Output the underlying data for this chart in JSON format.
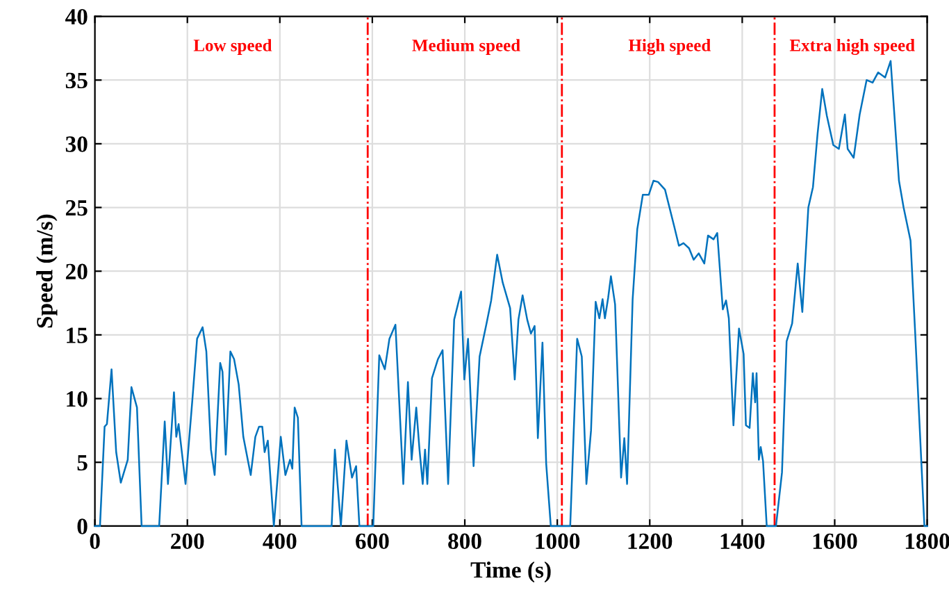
{
  "chart_data": {
    "type": "line",
    "xlabel": "Time (s)",
    "ylabel": "Speed (m/s)",
    "xlim": [
      0,
      1800
    ],
    "xticks": [
      0,
      200,
      400,
      600,
      800,
      1000,
      1200,
      1400,
      1600,
      1800
    ],
    "ylim": [
      0,
      40
    ],
    "yticks": [
      0,
      5,
      10,
      15,
      20,
      25,
      30,
      35,
      40
    ],
    "grid": true,
    "line_style": "solid",
    "marker": "none",
    "series": [
      {
        "color": "#0072bd",
        "x": [
          0,
          11,
          21,
          26,
          36,
          46,
          56,
          71,
          79,
          91,
          101,
          139,
          151,
          158,
          171,
          176,
          181,
          196,
          211,
          221,
          233,
          241,
          251,
          259,
          271,
          276,
          283,
          293,
          301,
          311,
          321,
          337,
          347,
          355,
          362,
          367,
          374,
          387,
          402,
          412,
          422,
          427,
          432,
          439,
          447,
          512,
          519,
          532,
          544,
          556,
          565,
          572,
          602,
          615,
          627,
          637,
          650,
          667,
          677,
          685,
          695,
          702,
          709,
          714,
          719,
          729,
          742,
          752,
          764,
          777,
          792,
          799,
          807,
          819,
          832,
          847,
          857,
          870,
          882,
          898,
          908,
          916,
          925,
          935,
          943,
          951,
          958,
          968,
          976,
          986,
          1028,
          1043,
          1053,
          1063,
          1073,
          1083,
          1091,
          1098,
          1103,
          1110,
          1116,
          1125,
          1138,
          1145,
          1151,
          1163,
          1173,
          1185,
          1198,
          1208,
          1218,
          1233,
          1253,
          1263,
          1273,
          1285,
          1295,
          1306,
          1318,
          1326,
          1338,
          1346,
          1358,
          1365,
          1371,
          1381,
          1393,
          1403,
          1408,
          1416,
          1423,
          1428,
          1431,
          1436,
          1440,
          1445,
          1453,
          1473,
          1486,
          1496,
          1508,
          1520,
          1530,
          1543,
          1553,
          1563,
          1573,
          1583,
          1597,
          1609,
          1622,
          1628,
          1641,
          1654,
          1669,
          1682,
          1694,
          1709,
          1721,
          1739,
          1749,
          1764,
          1774,
          1794,
          1800
        ],
        "values": [
          0,
          0,
          7.8,
          8.0,
          12.3,
          5.8,
          3.4,
          5.2,
          10.9,
          9.3,
          0,
          0,
          8.2,
          3.3,
          10.5,
          7.0,
          8.0,
          3.3,
          10.0,
          14.7,
          15.6,
          13.7,
          6.0,
          4.0,
          12.8,
          12.1,
          5.6,
          13.7,
          13.1,
          11.1,
          7.0,
          4.0,
          7.0,
          7.8,
          7.8,
          5.8,
          6.7,
          0,
          7.0,
          4.0,
          5.2,
          4.5,
          9.3,
          8.5,
          0,
          0,
          6.0,
          0,
          6.7,
          3.8,
          4.7,
          0,
          0,
          13.4,
          12.3,
          14.7,
          15.8,
          3.3,
          11.3,
          5.2,
          9.3,
          6.0,
          3.3,
          6.0,
          3.3,
          11.6,
          13.1,
          13.8,
          3.3,
          16.2,
          18.4,
          11.5,
          14.7,
          4.7,
          13.3,
          15.9,
          17.7,
          21.3,
          19.1,
          17.1,
          11.5,
          16.2,
          18.1,
          16.2,
          15.1,
          15.7,
          6.9,
          14.4,
          4.9,
          0,
          0,
          14.7,
          13.3,
          3.3,
          7.5,
          17.6,
          16.3,
          17.8,
          16.3,
          17.9,
          19.6,
          17.4,
          3.8,
          6.9,
          3.3,
          17.8,
          23.3,
          26.0,
          26.0,
          27.1,
          27.0,
          26.4,
          23.5,
          22.0,
          22.2,
          21.8,
          20.9,
          21.4,
          20.6,
          22.8,
          22.5,
          23.0,
          17.0,
          17.7,
          16.3,
          7.9,
          15.5,
          13.5,
          7.9,
          7.7,
          12.0,
          9.7,
          12.0,
          5.2,
          6.2,
          5.1,
          0,
          0,
          4.2,
          14.5,
          15.9,
          20.6,
          16.8,
          25.0,
          26.6,
          30.8,
          34.3,
          32.2,
          29.9,
          29.6,
          32.3,
          29.6,
          28.9,
          32.3,
          35.0,
          34.8,
          35.6,
          35.2,
          36.5,
          27.1,
          25.0,
          22.4,
          15.2,
          0,
          0
        ]
      }
    ],
    "ref_lines": [
      {
        "axis": "x",
        "value": 590,
        "color": "#ff0000",
        "line_style": "dashdot"
      },
      {
        "axis": "x",
        "value": 1010,
        "color": "#ff0000",
        "line_style": "dashdot"
      },
      {
        "axis": "x",
        "value": 1470,
        "color": "#ff0000",
        "line_style": "dashdot"
      }
    ],
    "annotations": [
      "Low speed",
      "Medium speed",
      "High speed",
      "Extra high speed"
    ]
  }
}
